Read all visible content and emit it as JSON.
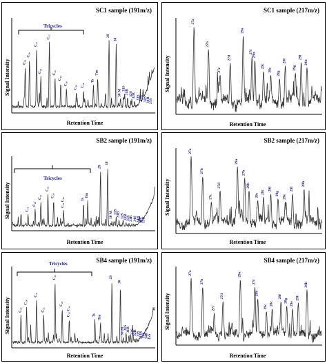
{
  "chart_data": [
    {
      "type": "line",
      "title": "SC1 sample (191m/z)",
      "xlabel": "Retention Time",
      "ylabel": "Signal Intensity",
      "bracket_label": "Tricycles",
      "peaks": [
        {
          "x": 0.09,
          "y": 0.5,
          "label": "C₁₉"
        },
        {
          "x": 0.12,
          "y": 0.58,
          "label": "C₂₀"
        },
        {
          "x": 0.17,
          "y": 0.7,
          "label": "C₂₁"
        },
        {
          "x": 0.2,
          "y": 0.4,
          "label": "C₂₂"
        },
        {
          "x": 0.26,
          "y": 0.78,
          "label": "C₂₃"
        },
        {
          "x": 0.3,
          "y": 0.38,
          "label": "C₂₄"
        },
        {
          "x": 0.34,
          "y": 0.32,
          "label": "C₂₅"
        },
        {
          "x": 0.38,
          "y": 0.26,
          "label": "C₂₆"
        },
        {
          "x": 0.45,
          "y": 0.22,
          "label": "C₂₈"
        },
        {
          "x": 0.5,
          "y": 0.24,
          "label": "C₂₉"
        },
        {
          "x": 0.57,
          "y": 0.3,
          "label": "Ts"
        },
        {
          "x": 0.6,
          "y": 0.38,
          "label": "Tm"
        },
        {
          "x": 0.68,
          "y": 0.8,
          "label": "29"
        },
        {
          "x": 0.73,
          "y": 0.76,
          "label": "30"
        },
        {
          "x": 0.76,
          "y": 0.14,
          "label": "30 M"
        },
        {
          "x": 0.79,
          "y": 0.2,
          "label": "31S"
        },
        {
          "x": 0.81,
          "y": 0.16,
          "label": "31R"
        },
        {
          "x": 0.84,
          "y": 0.14,
          "label": "32S"
        },
        {
          "x": 0.86,
          "y": 0.12,
          "label": "32R"
        },
        {
          "x": 0.89,
          "y": 0.1,
          "label": "33S"
        },
        {
          "x": 0.91,
          "y": 0.09,
          "label": "33R"
        },
        {
          "x": 0.94,
          "y": 0.08,
          "label": "34S"
        },
        {
          "x": 0.96,
          "y": 0.07,
          "label": "34R"
        },
        {
          "x": 0.98,
          "y": 0.06,
          "label": "35S"
        }
      ]
    },
    {
      "type": "line",
      "title": "SC1 sample (217m/z)",
      "xlabel": "Retention Time",
      "ylabel": "Signal Intensity",
      "peaks": [
        {
          "x": 0.12,
          "y": 0.95,
          "label": "27a"
        },
        {
          "x": 0.22,
          "y": 0.7,
          "label": "27b"
        },
        {
          "x": 0.3,
          "y": 0.42,
          "label": "27c"
        },
        {
          "x": 0.37,
          "y": 0.55,
          "label": "27d"
        },
        {
          "x": 0.46,
          "y": 0.85,
          "label": "29a"
        },
        {
          "x": 0.52,
          "y": 0.62,
          "label": "27f"
        },
        {
          "x": 0.54,
          "y": 0.58,
          "label": "29b"
        },
        {
          "x": 0.6,
          "y": 0.46,
          "label": "29c"
        },
        {
          "x": 0.65,
          "y": 0.42,
          "label": "28c"
        },
        {
          "x": 0.71,
          "y": 0.38,
          "label": "28g"
        },
        {
          "x": 0.75,
          "y": 0.52,
          "label": "29f"
        },
        {
          "x": 0.82,
          "y": 0.44,
          "label": "29g"
        },
        {
          "x": 0.86,
          "y": 0.56,
          "label": "29f"
        },
        {
          "x": 0.9,
          "y": 0.5,
          "label": "29h"
        }
      ]
    },
    {
      "type": "line",
      "title": "SB2 sample (191m/z)",
      "xlabel": "Retention Time",
      "ylabel": "Signal Intensity",
      "bracket_label": "Tricycles",
      "peaks": [
        {
          "x": 0.11,
          "y": 0.22,
          "label": "C₁₉"
        },
        {
          "x": 0.16,
          "y": 0.3,
          "label": "C₂₀"
        },
        {
          "x": 0.2,
          "y": 0.4,
          "label": "C₂₁"
        },
        {
          "x": 0.25,
          "y": 0.52,
          "label": "C₂₃"
        },
        {
          "x": 0.29,
          "y": 0.42,
          "label": "C₂₄"
        },
        {
          "x": 0.36,
          "y": 0.28,
          "label": "C₂₅ C₂₆"
        },
        {
          "x": 0.5,
          "y": 0.38,
          "label": "Ts"
        },
        {
          "x": 0.53,
          "y": 0.42,
          "label": "Tm"
        },
        {
          "x": 0.62,
          "y": 0.85,
          "label": "29"
        },
        {
          "x": 0.67,
          "y": 0.9,
          "label": "30"
        },
        {
          "x": 0.7,
          "y": 0.12,
          "label": "30 M"
        },
        {
          "x": 0.73,
          "y": 0.18,
          "label": "31S"
        },
        {
          "x": 0.75,
          "y": 0.14,
          "label": "31R"
        },
        {
          "x": 0.78,
          "y": 0.12,
          "label": "32S"
        },
        {
          "x": 0.8,
          "y": 0.1,
          "label": "32R"
        },
        {
          "x": 0.82,
          "y": 0.09,
          "label": "33S"
        },
        {
          "x": 0.84,
          "y": 0.08,
          "label": "33R"
        },
        {
          "x": 0.87,
          "y": 0.08,
          "label": "34S"
        },
        {
          "x": 0.89,
          "y": 0.07,
          "label": "34R"
        },
        {
          "x": 0.91,
          "y": 0.06,
          "label": "35S"
        },
        {
          "x": 0.93,
          "y": 0.06,
          "label": "35R"
        }
      ]
    },
    {
      "type": "line",
      "title": "SB2 sample (217m/z)",
      "xlabel": "Retention Time",
      "ylabel": "Signal Intensity",
      "peaks": [
        {
          "x": 0.1,
          "y": 0.95,
          "label": "27a"
        },
        {
          "x": 0.18,
          "y": 0.7,
          "label": "27b"
        },
        {
          "x": 0.24,
          "y": 0.38,
          "label": "27c"
        },
        {
          "x": 0.3,
          "y": 0.52,
          "label": "27d"
        },
        {
          "x": 0.42,
          "y": 0.82,
          "label": "29a"
        },
        {
          "x": 0.47,
          "y": 0.68,
          "label": "27b"
        },
        {
          "x": 0.5,
          "y": 0.52,
          "label": "29b"
        },
        {
          "x": 0.56,
          "y": 0.4,
          "label": "29c"
        },
        {
          "x": 0.6,
          "y": 0.44,
          "label": "28c"
        },
        {
          "x": 0.65,
          "y": 0.48,
          "label": "29f"
        },
        {
          "x": 0.7,
          "y": 0.42,
          "label": "28g"
        },
        {
          "x": 0.75,
          "y": 0.38,
          "label": "29e"
        },
        {
          "x": 0.8,
          "y": 0.48,
          "label": "29f"
        },
        {
          "x": 0.88,
          "y": 0.54,
          "label": "29h"
        }
      ]
    },
    {
      "type": "line",
      "title": "SB4 sample (191m/z)",
      "xlabel": "Retention Time",
      "ylabel": "Signal Intensity",
      "bracket_label": "Tricycles",
      "peaks": [
        {
          "x": 0.06,
          "y": 0.42,
          "label": "C₁₉"
        },
        {
          "x": 0.1,
          "y": 0.52,
          "label": "C₂₀"
        },
        {
          "x": 0.17,
          "y": 0.62,
          "label": "C₂₁"
        },
        {
          "x": 0.22,
          "y": 0.42,
          "label": "C₂₂"
        },
        {
          "x": 0.3,
          "y": 0.85,
          "label": "C₂₃"
        },
        {
          "x": 0.35,
          "y": 0.5,
          "label": "C₂₄"
        },
        {
          "x": 0.4,
          "y": 0.36,
          "label": "C₂₅ C₂₆"
        },
        {
          "x": 0.58,
          "y": 0.36,
          "label": "Ts"
        },
        {
          "x": 0.62,
          "y": 0.32,
          "label": "Tm"
        },
        {
          "x": 0.7,
          "y": 0.86,
          "label": "29"
        },
        {
          "x": 0.76,
          "y": 0.8,
          "label": "30"
        },
        {
          "x": 0.78,
          "y": 0.12,
          "label": "30 M"
        },
        {
          "x": 0.8,
          "y": 0.18,
          "label": "31S"
        },
        {
          "x": 0.82,
          "y": 0.15,
          "label": "31R"
        },
        {
          "x": 0.85,
          "y": 0.13,
          "label": "32S"
        },
        {
          "x": 0.87,
          "y": 0.11,
          "label": "32R"
        },
        {
          "x": 0.89,
          "y": 0.1,
          "label": "33S"
        },
        {
          "x": 0.91,
          "y": 0.09,
          "label": "33R"
        },
        {
          "x": 0.93,
          "y": 0.08,
          "label": "34S"
        },
        {
          "x": 0.95,
          "y": 0.07,
          "label": "34R"
        },
        {
          "x": 0.97,
          "y": 0.06,
          "label": "35S"
        }
      ]
    },
    {
      "type": "line",
      "title": "SB4 sample (217m/z)",
      "xlabel": "Retention Time",
      "ylabel": "Signal Intensity",
      "peaks": [
        {
          "x": 0.1,
          "y": 0.9,
          "label": "27a"
        },
        {
          "x": 0.18,
          "y": 0.78,
          "label": "27b"
        },
        {
          "x": 0.26,
          "y": 0.42,
          "label": "27c"
        },
        {
          "x": 0.32,
          "y": 0.58,
          "label": "27d"
        },
        {
          "x": 0.44,
          "y": 0.88,
          "label": "29a"
        },
        {
          "x": 0.54,
          "y": 0.78,
          "label": "27f"
        },
        {
          "x": 0.56,
          "y": 0.62,
          "label": "29b"
        },
        {
          "x": 0.62,
          "y": 0.44,
          "label": "29c"
        },
        {
          "x": 0.66,
          "y": 0.48,
          "label": "28c"
        },
        {
          "x": 0.72,
          "y": 0.58,
          "label": "28f"
        },
        {
          "x": 0.76,
          "y": 0.52,
          "label": "28g"
        },
        {
          "x": 0.8,
          "y": 0.48,
          "label": "29e"
        },
        {
          "x": 0.84,
          "y": 0.56,
          "label": "29f"
        },
        {
          "x": 0.9,
          "y": 0.74,
          "label": "29h"
        }
      ]
    }
  ],
  "colors": {
    "trace": "#333333",
    "peak_label": "#1a1a8a",
    "frame": "#000000"
  }
}
